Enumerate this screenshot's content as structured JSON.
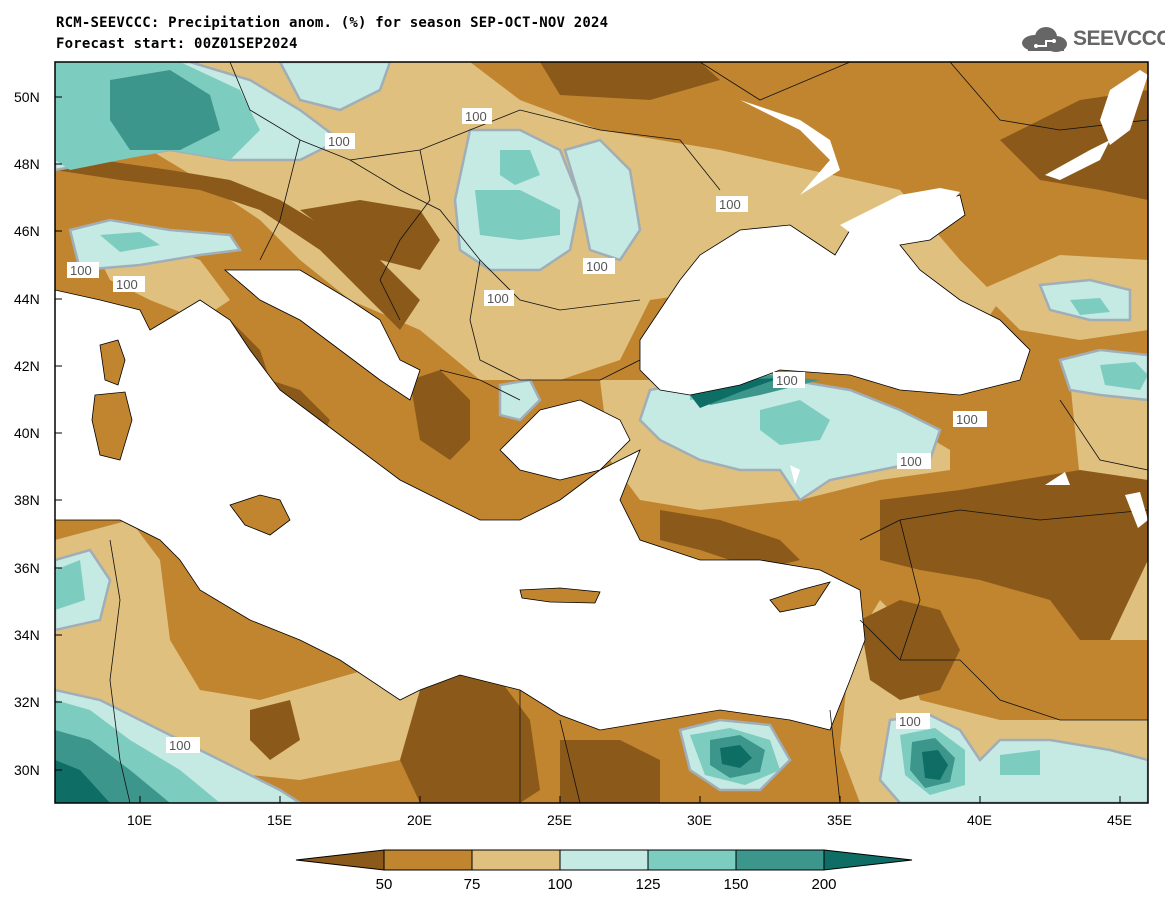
{
  "header": {
    "title_line1": "RCM-SEEVCCC: Precipitation anom. (%) for season SEP-OCT-NOV 2024",
    "title_line2": "Forecast start: 00Z01SEP2024"
  },
  "logo": {
    "text": "SEEVCCC",
    "icon": "cloud-icon"
  },
  "map": {
    "lat_labels": [
      "50N",
      "48N",
      "46N",
      "44N",
      "42N",
      "40N",
      "38N",
      "36N",
      "34N",
      "32N",
      "30N"
    ],
    "lon_labels": [
      "10E",
      "15E",
      "20E",
      "25E",
      "30E",
      "35E",
      "40E",
      "45E"
    ],
    "contour_labels": [
      "100",
      "100",
      "100",
      "100",
      "100",
      "100",
      "100",
      "100",
      "100",
      "100",
      "100",
      "100"
    ]
  },
  "colorbar": {
    "labels": [
      "50",
      "75",
      "100",
      "125",
      "150",
      "200"
    ],
    "colors": [
      "#8b5a1a",
      "#c1852f",
      "#dfc07e",
      "#c5e9e3",
      "#7dccc0",
      "#3d968c",
      "#0e6e66"
    ]
  },
  "colors": {
    "sea": "#ffffff",
    "dark_brown": "#8b5a1a",
    "mid_brown": "#c1852f",
    "tan": "#dfc07e",
    "light_teal": "#c5e9e3",
    "mid_teal": "#7dccc0",
    "dark_teal": "#3d968c",
    "deep_teal": "#0e6e66"
  }
}
